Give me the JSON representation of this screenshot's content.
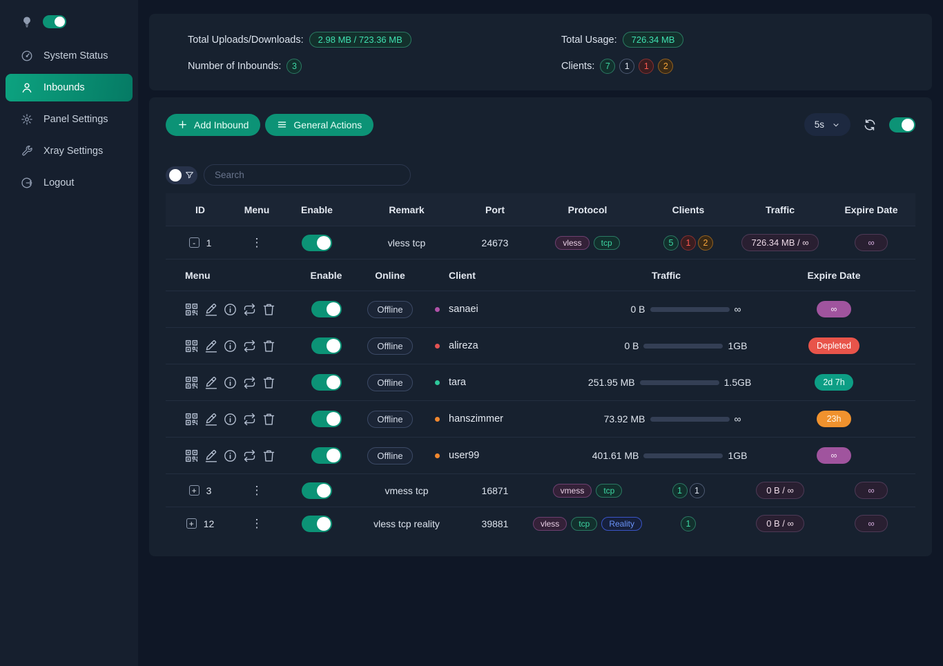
{
  "colors": {
    "accent": "#0c9376",
    "purple": "#a0549e",
    "red": "#e8544a",
    "orange": "#f0922e",
    "blue": "#6a93f8",
    "green_text": "#3fe0b0",
    "page_bg": "#0f1726",
    "card_bg": "#17212f"
  },
  "sidebar": {
    "items": [
      {
        "label": "System Status"
      },
      {
        "label": "Inbounds"
      },
      {
        "label": "Panel Settings"
      },
      {
        "label": "Xray Settings"
      },
      {
        "label": "Logout"
      }
    ]
  },
  "stats": {
    "uploads_label": "Total Uploads/Downloads:",
    "uploads_value": "2.98 MB / 723.36 MB",
    "inbounds_label": "Number of Inbounds:",
    "inbounds_value": "3",
    "usage_label": "Total Usage:",
    "usage_value": "726.34 MB",
    "clients_label": "Clients:",
    "client_badges": [
      {
        "value": "7",
        "variant": "green"
      },
      {
        "value": "1",
        "variant": "gray"
      },
      {
        "value": "1",
        "variant": "red"
      },
      {
        "value": "2",
        "variant": "orange"
      }
    ]
  },
  "toolbar": {
    "add_inbound": "Add Inbound",
    "general_actions": "General Actions",
    "refresh_interval": "5s"
  },
  "search": {
    "placeholder": "Search"
  },
  "table": {
    "headers": [
      "ID",
      "Menu",
      "Enable",
      "Remark",
      "Port",
      "Protocol",
      "Clients",
      "Traffic",
      "Expire Date"
    ]
  },
  "client_table": {
    "headers": [
      "Menu",
      "Enable",
      "Online",
      "Client",
      "Traffic",
      "Expire Date"
    ],
    "menu_icons": [
      "qrcode-icon",
      "edit-icon",
      "info-icon",
      "reset-traffic-icon",
      "delete-icon"
    ]
  },
  "inbounds": [
    {
      "id": "1",
      "expanded": true,
      "remark": "vless tcp",
      "port": "24673",
      "protocols": [
        {
          "label": "vless",
          "variant": "purple"
        },
        {
          "label": "tcp",
          "variant": "green"
        }
      ],
      "client_badges": [
        {
          "value": "5",
          "variant": "green"
        },
        {
          "value": "1",
          "variant": "red"
        },
        {
          "value": "2",
          "variant": "orange"
        }
      ],
      "traffic": "726.34 MB / ∞",
      "expire": "∞",
      "clients": [
        {
          "name": "sanaei",
          "status": "Offline",
          "dot_color": "#b052a8",
          "traffic_used": "0 B",
          "traffic_limit": "∞",
          "bar_percent": 100,
          "bar_color": "purple",
          "expire_text": "∞",
          "expire_variant": "purple"
        },
        {
          "name": "alireza",
          "status": "Offline",
          "dot_color": "#e25252",
          "traffic_used": "0 B",
          "traffic_limit": "1GB",
          "bar_percent": 0,
          "bar_color": "green",
          "expire_text": "Depleted",
          "expire_variant": "red"
        },
        {
          "name": "tara",
          "status": "Offline",
          "dot_color": "#2ec79a",
          "traffic_used": "251.95 MB",
          "traffic_limit": "1.5GB",
          "bar_percent": 18,
          "bar_color": "green",
          "expire_text": "2d 7h",
          "expire_variant": "teal"
        },
        {
          "name": "hanszimmer",
          "status": "Offline",
          "dot_color": "#f0872e",
          "traffic_used": "73.92 MB",
          "traffic_limit": "∞",
          "bar_percent": 100,
          "bar_color": "purple",
          "expire_text": "23h",
          "expire_variant": "orange"
        },
        {
          "name": "user99",
          "status": "Offline",
          "dot_color": "#f0872e",
          "traffic_used": "401.61 MB",
          "traffic_limit": "1GB",
          "bar_percent": 40,
          "bar_color": "orange",
          "expire_text": "∞",
          "expire_variant": "purple"
        }
      ]
    },
    {
      "id": "3",
      "expanded": false,
      "remark": "vmess tcp",
      "port": "16871",
      "protocols": [
        {
          "label": "vmess",
          "variant": "purple"
        },
        {
          "label": "tcp",
          "variant": "green"
        }
      ],
      "client_badges": [
        {
          "value": "1",
          "variant": "green"
        },
        {
          "value": "1",
          "variant": "gray"
        }
      ],
      "traffic": "0 B / ∞",
      "expire": "∞"
    },
    {
      "id": "12",
      "expanded": false,
      "remark": "vless tcp reality",
      "port": "39881",
      "protocols": [
        {
          "label": "vless",
          "variant": "purple"
        },
        {
          "label": "tcp",
          "variant": "green"
        },
        {
          "label": "Reality",
          "variant": "blue"
        }
      ],
      "client_badges": [
        {
          "value": "1",
          "variant": "green"
        }
      ],
      "traffic": "0 B / ∞",
      "expire": "∞"
    }
  ]
}
